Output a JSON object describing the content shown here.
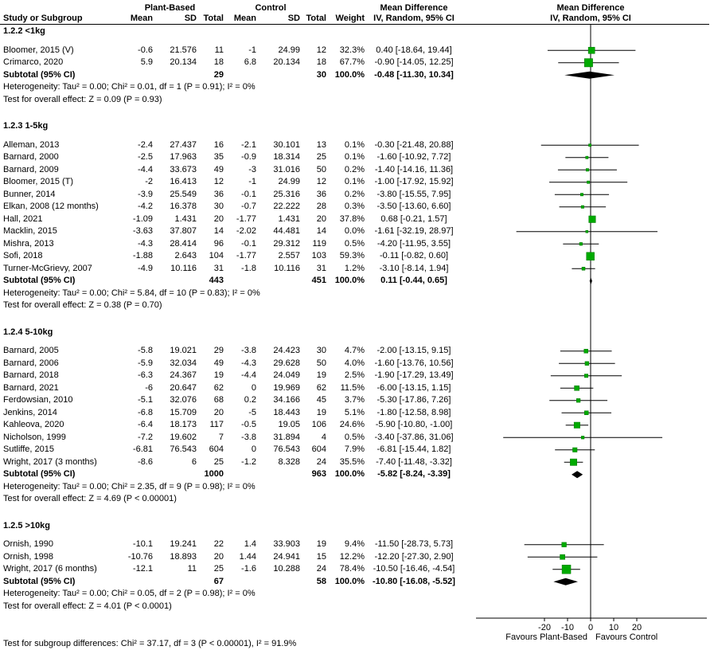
{
  "header": {
    "group1_label": "Plant-Based",
    "group2_label": "Control",
    "study_col": "Study or Subgroup",
    "mean_col": "Mean",
    "sd_col": "SD",
    "total_col": "Total",
    "weight_col": "Weight",
    "md_title": "Mean Difference",
    "md_method": "IV, Random, 95% CI"
  },
  "colors": {
    "marker": "#00aa00",
    "marker_border": "#007700",
    "diamond": "#000000",
    "line": "#000000"
  },
  "chart_data": {
    "type": "forest",
    "effect_measure": "Mean Difference",
    "method": "IV, Random, 95% CI",
    "axis": {
      "ticks": [
        -20,
        -10,
        0,
        10,
        20
      ],
      "xlim": [
        -50,
        50
      ],
      "favours_left": "Favours Plant-Based",
      "favours_right": "Favours Control"
    },
    "subgroup_difference_test": "Test for subgroup differences: Chi² = 37.17, df = 3 (P < 0.00001), I² = 91.9%",
    "subgroups": [
      {
        "title": "1.2.2 <1kg",
        "studies": [
          {
            "name": "Bloomer, 2015 (V)",
            "m1": "-0.6",
            "sd1": "21.576",
            "n1": "11",
            "m2": "-1",
            "sd2": "24.99",
            "n2": "12",
            "weight": "32.3%",
            "w": 32.3,
            "ci": "0.40 [-18.64, 19.44]",
            "est": 0.4,
            "lo": -18.64,
            "hi": 19.44
          },
          {
            "name": "Crimarco, 2020",
            "m1": "5.9",
            "sd1": "20.134",
            "n1": "18",
            "m2": "6.8",
            "sd2": "20.134",
            "n2": "18",
            "weight": "67.7%",
            "w": 67.7,
            "ci": "-0.90 [-14.05, 12.25]",
            "est": -0.9,
            "lo": -14.05,
            "hi": 12.25
          }
        ],
        "subtotal": {
          "label": "Subtotal (95% CI)",
          "n1": "29",
          "n2": "30",
          "weight": "100.0%",
          "ci": "-0.48 [-11.30, 10.34]",
          "est": -0.48,
          "lo": -11.3,
          "hi": 10.34
        },
        "heterogeneity": "Heterogeneity: Tau² = 0.00; Chi² = 0.01, df = 1 (P = 0.91); I² = 0%",
        "overall": "Test for overall effect: Z = 0.09 (P = 0.93)"
      },
      {
        "title": "1.2.3 1-5kg",
        "studies": [
          {
            "name": "Alleman, 2013",
            "m1": "-2.4",
            "sd1": "27.437",
            "n1": "16",
            "m2": "-2.1",
            "sd2": "30.101",
            "n2": "13",
            "weight": "0.1%",
            "w": 0.1,
            "ci": "-0.30 [-21.48, 20.88]",
            "est": -0.3,
            "lo": -21.48,
            "hi": 20.88
          },
          {
            "name": "Barnard, 2000",
            "m1": "-2.5",
            "sd1": "17.963",
            "n1": "35",
            "m2": "-0.9",
            "sd2": "18.314",
            "n2": "25",
            "weight": "0.1%",
            "w": 0.1,
            "ci": "-1.60 [-10.92, 7.72]",
            "est": -1.6,
            "lo": -10.92,
            "hi": 7.72
          },
          {
            "name": "Barnard, 2009",
            "m1": "-4.4",
            "sd1": "33.673",
            "n1": "49",
            "m2": "-3",
            "sd2": "31.016",
            "n2": "50",
            "weight": "0.2%",
            "w": 0.2,
            "ci": "-1.40 [-14.16, 11.36]",
            "est": -1.4,
            "lo": -14.16,
            "hi": 11.36
          },
          {
            "name": "Bloomer, 2015 (T)",
            "m1": "-2",
            "sd1": "16.413",
            "n1": "12",
            "m2": "-1",
            "sd2": "24.99",
            "n2": "12",
            "weight": "0.1%",
            "w": 0.1,
            "ci": "-1.00 [-17.92, 15.92]",
            "est": -1.0,
            "lo": -17.92,
            "hi": 15.92
          },
          {
            "name": "Bunner, 2014",
            "m1": "-3.9",
            "sd1": "25.549",
            "n1": "36",
            "m2": "-0.1",
            "sd2": "25.316",
            "n2": "36",
            "weight": "0.2%",
            "w": 0.2,
            "ci": "-3.80 [-15.55, 7.95]",
            "est": -3.8,
            "lo": -15.55,
            "hi": 7.95
          },
          {
            "name": "Elkan, 2008 (12 months)",
            "m1": "-4.2",
            "sd1": "16.378",
            "n1": "30",
            "m2": "-0.7",
            "sd2": "22.222",
            "n2": "28",
            "weight": "0.3%",
            "w": 0.3,
            "ci": "-3.50 [-13.60, 6.60]",
            "est": -3.5,
            "lo": -13.6,
            "hi": 6.6
          },
          {
            "name": "Hall, 2021",
            "m1": "-1.09",
            "sd1": "1.431",
            "n1": "20",
            "m2": "-1.77",
            "sd2": "1.431",
            "n2": "20",
            "weight": "37.8%",
            "w": 37.8,
            "ci": "0.68 [-0.21, 1.57]",
            "est": 0.68,
            "lo": -0.21,
            "hi": 1.57
          },
          {
            "name": "Macklin, 2015",
            "m1": "-3.63",
            "sd1": "37.807",
            "n1": "14",
            "m2": "-2.02",
            "sd2": "44.481",
            "n2": "14",
            "weight": "0.0%",
            "w": 0.0,
            "ci": "-1.61 [-32.19, 28.97]",
            "est": -1.61,
            "lo": -32.19,
            "hi": 28.97
          },
          {
            "name": "Mishra, 2013",
            "m1": "-4.3",
            "sd1": "28.414",
            "n1": "96",
            "m2": "-0.1",
            "sd2": "29.312",
            "n2": "119",
            "weight": "0.5%",
            "w": 0.5,
            "ci": "-4.20 [-11.95, 3.55]",
            "est": -4.2,
            "lo": -11.95,
            "hi": 3.55
          },
          {
            "name": "Sofi, 2018",
            "m1": "-1.88",
            "sd1": "2.643",
            "n1": "104",
            "m2": "-1.77",
            "sd2": "2.557",
            "n2": "103",
            "weight": "59.3%",
            "w": 59.3,
            "ci": "-0.11 [-0.82, 0.60]",
            "est": -0.11,
            "lo": -0.82,
            "hi": 0.6
          },
          {
            "name": "Turner-McGrievy, 2007",
            "m1": "-4.9",
            "sd1": "10.116",
            "n1": "31",
            "m2": "-1.8",
            "sd2": "10.116",
            "n2": "31",
            "weight": "1.2%",
            "w": 1.2,
            "ci": "-3.10 [-8.14, 1.94]",
            "est": -3.1,
            "lo": -8.14,
            "hi": 1.94
          }
        ],
        "subtotal": {
          "label": "Subtotal (95% CI)",
          "n1": "443",
          "n2": "451",
          "weight": "100.0%",
          "ci": "0.11 [-0.44, 0.65]",
          "est": 0.11,
          "lo": -0.44,
          "hi": 0.65
        },
        "heterogeneity": "Heterogeneity: Tau² = 0.00; Chi² = 5.84, df = 10 (P = 0.83); I² = 0%",
        "overall": "Test for overall effect: Z = 0.38 (P = 0.70)"
      },
      {
        "title": "1.2.4 5-10kg",
        "studies": [
          {
            "name": "Barnard, 2005",
            "m1": "-5.8",
            "sd1": "19.021",
            "n1": "29",
            "m2": "-3.8",
            "sd2": "24.423",
            "n2": "30",
            "weight": "4.7%",
            "w": 4.7,
            "ci": "-2.00 [-13.15, 9.15]",
            "est": -2.0,
            "lo": -13.15,
            "hi": 9.15
          },
          {
            "name": "Barnard, 2006",
            "m1": "-5.9",
            "sd1": "32.034",
            "n1": "49",
            "m2": "-4.3",
            "sd2": "29.628",
            "n2": "50",
            "weight": "4.0%",
            "w": 4.0,
            "ci": "-1.60 [-13.76, 10.56]",
            "est": -1.6,
            "lo": -13.76,
            "hi": 10.56
          },
          {
            "name": "Barnard, 2018",
            "m1": "-6.3",
            "sd1": "24.367",
            "n1": "19",
            "m2": "-4.4",
            "sd2": "24.049",
            "n2": "19",
            "weight": "2.5%",
            "w": 2.5,
            "ci": "-1.90 [-17.29, 13.49]",
            "est": -1.9,
            "lo": -17.29,
            "hi": 13.49
          },
          {
            "name": "Barnard, 2021",
            "m1": "-6",
            "sd1": "20.647",
            "n1": "62",
            "m2": "0",
            "sd2": "19.969",
            "n2": "62",
            "weight": "11.5%",
            "w": 11.5,
            "ci": "-6.00 [-13.15, 1.15]",
            "est": -6.0,
            "lo": -13.15,
            "hi": 1.15
          },
          {
            "name": "Ferdowsian, 2010",
            "m1": "-5.1",
            "sd1": "32.076",
            "n1": "68",
            "m2": "0.2",
            "sd2": "34.166",
            "n2": "45",
            "weight": "3.7%",
            "w": 3.7,
            "ci": "-5.30 [-17.86, 7.26]",
            "est": -5.3,
            "lo": -17.86,
            "hi": 7.26
          },
          {
            "name": "Jenkins, 2014",
            "m1": "-6.8",
            "sd1": "15.709",
            "n1": "20",
            "m2": "-5",
            "sd2": "18.443",
            "n2": "19",
            "weight": "5.1%",
            "w": 5.1,
            "ci": "-1.80 [-12.58, 8.98]",
            "est": -1.8,
            "lo": -12.58,
            "hi": 8.98
          },
          {
            "name": "Kahleova, 2020",
            "m1": "-6.4",
            "sd1": "18.173",
            "n1": "117",
            "m2": "-0.5",
            "sd2": "19.05",
            "n2": "106",
            "weight": "24.6%",
            "w": 24.6,
            "ci": "-5.90 [-10.80, -1.00]",
            "est": -5.9,
            "lo": -10.8,
            "hi": -1.0
          },
          {
            "name": "Nicholson, 1999",
            "m1": "-7.2",
            "sd1": "19.602",
            "n1": "7",
            "m2": "-3.8",
            "sd2": "31.894",
            "n2": "4",
            "weight": "0.5%",
            "w": 0.5,
            "ci": "-3.40 [-37.86, 31.06]",
            "est": -3.4,
            "lo": -37.86,
            "hi": 31.06
          },
          {
            "name": "Sutliffe, 2015",
            "m1": "-6.81",
            "sd1": "76.543",
            "n1": "604",
            "m2": "0",
            "sd2": "76.543",
            "n2": "604",
            "weight": "7.9%",
            "w": 7.9,
            "ci": "-6.81 [-15.44, 1.82]",
            "est": -6.81,
            "lo": -15.44,
            "hi": 1.82
          },
          {
            "name": "Wright, 2017 (3 months)",
            "m1": "-8.6",
            "sd1": "6",
            "n1": "25",
            "m2": "-1.2",
            "sd2": "8.328",
            "n2": "24",
            "weight": "35.5%",
            "w": 35.5,
            "ci": "-7.40 [-11.48, -3.32]",
            "est": -7.4,
            "lo": -11.48,
            "hi": -3.32
          }
        ],
        "subtotal": {
          "label": "Subtotal (95% CI)",
          "n1": "1000",
          "n2": "963",
          "weight": "100.0%",
          "ci": "-5.82 [-8.24, -3.39]",
          "est": -5.82,
          "lo": -8.24,
          "hi": -3.39
        },
        "heterogeneity": "Heterogeneity: Tau² = 0.00; Chi² = 2.35, df = 9 (P = 0.98); I² = 0%",
        "overall": "Test for overall effect: Z = 4.69 (P < 0.00001)"
      },
      {
        "title": "1.2.5 >10kg",
        "studies": [
          {
            "name": "Ornish, 1990",
            "m1": "-10.1",
            "sd1": "19.241",
            "n1": "22",
            "m2": "1.4",
            "sd2": "33.903",
            "n2": "19",
            "weight": "9.4%",
            "w": 9.4,
            "ci": "-11.50 [-28.73, 5.73]",
            "est": -11.5,
            "lo": -28.73,
            "hi": 5.73
          },
          {
            "name": "Ornish, 1998",
            "m1": "-10.76",
            "sd1": "18.893",
            "n1": "20",
            "m2": "1.44",
            "sd2": "24.941",
            "n2": "15",
            "weight": "12.2%",
            "w": 12.2,
            "ci": "-12.20 [-27.30, 2.90]",
            "est": -12.2,
            "lo": -27.3,
            "hi": 2.9
          },
          {
            "name": "Wright, 2017 (6 months)",
            "m1": "-12.1",
            "sd1": "11",
            "n1": "25",
            "m2": "-1.6",
            "sd2": "10.288",
            "n2": "24",
            "weight": "78.4%",
            "w": 78.4,
            "ci": "-10.50 [-16.46, -4.54]",
            "est": -10.5,
            "lo": -16.46,
            "hi": -4.54
          }
        ],
        "subtotal": {
          "label": "Subtotal (95% CI)",
          "n1": "67",
          "n2": "58",
          "weight": "100.0%",
          "ci": "-10.80 [-16.08, -5.52]",
          "est": -10.8,
          "lo": -16.08,
          "hi": -5.52
        },
        "heterogeneity": "Heterogeneity: Tau² = 0.00; Chi² = 0.05, df = 2 (P = 0.98); I² = 0%",
        "overall": "Test for overall effect: Z = 4.01 (P < 0.0001)"
      }
    ]
  }
}
